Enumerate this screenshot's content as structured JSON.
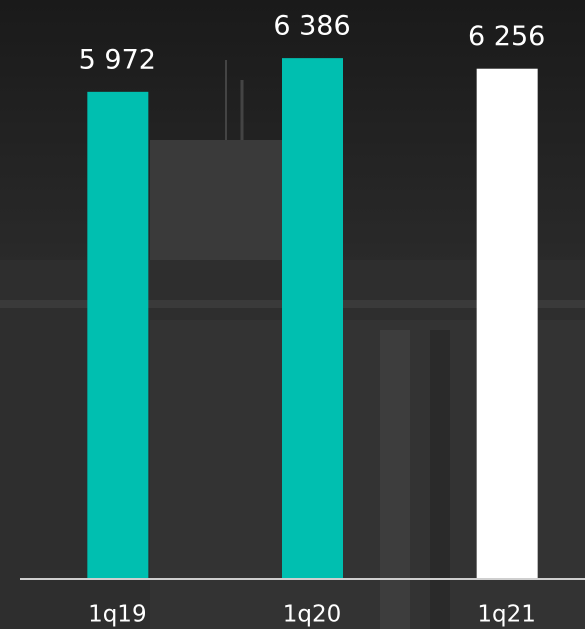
{
  "chart_data": {
    "type": "bar",
    "categories": [
      "1q19",
      "1q20",
      "1q21"
    ],
    "values": [
      5972,
      6386,
      6256
    ],
    "value_labels": [
      "5 972",
      "6 386",
      "6 256"
    ],
    "colors": [
      "#00bfb0",
      "#00bfb0",
      "#ffffff"
    ],
    "ylim": [
      0,
      7100
    ]
  }
}
